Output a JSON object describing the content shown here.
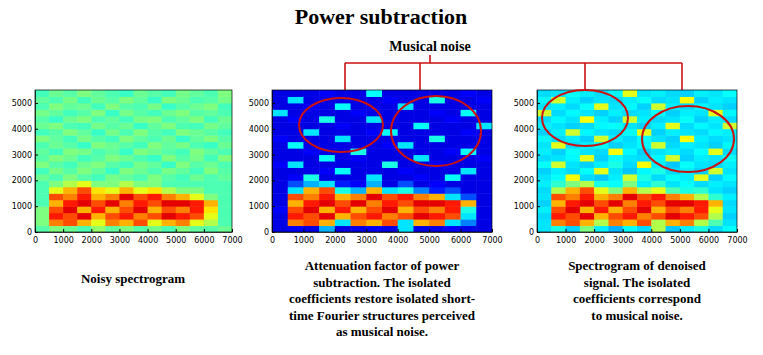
{
  "title": "Power subtraction",
  "annotation": "Musical noise",
  "chart_data": [
    {
      "type": "heatmap",
      "title": [
        "Noisy spectrogram"
      ],
      "xlim": [
        0,
        7000
      ],
      "ylim": [
        0,
        5500
      ],
      "xticks": [
        0,
        1000,
        2000,
        3000,
        4000,
        5000,
        6000,
        7000
      ],
      "yticks": [
        0,
        1000,
        2000,
        3000,
        4000,
        5000
      ],
      "zlim": [
        0,
        1
      ],
      "z": [
        [
          0.46,
          0.5,
          0.48,
          0.45,
          0.52,
          0.47,
          0.5,
          0.46,
          0.49,
          0.45,
          0.5,
          0.47,
          0.46,
          0.48
        ],
        [
          0.5,
          0.75,
          0.8,
          0.7,
          0.6,
          0.75,
          0.7,
          0.8,
          0.6,
          0.7,
          0.75,
          0.6,
          0.55,
          0.45
        ],
        [
          0.5,
          0.85,
          0.8,
          0.9,
          0.7,
          0.8,
          0.85,
          0.75,
          0.8,
          0.9,
          0.85,
          0.8,
          0.6,
          0.45
        ],
        [
          0.5,
          0.8,
          0.9,
          0.7,
          0.85,
          0.7,
          0.8,
          0.9,
          0.7,
          0.8,
          0.75,
          0.85,
          0.65,
          0.45
        ],
        [
          0.45,
          0.7,
          0.85,
          0.9,
          0.8,
          0.9,
          0.75,
          0.85,
          0.8,
          0.9,
          0.9,
          0.85,
          0.7,
          0.45
        ],
        [
          0.45,
          0.8,
          0.75,
          0.85,
          0.7,
          0.75,
          0.9,
          0.8,
          0.85,
          0.75,
          0.7,
          0.6,
          0.5,
          0.45
        ],
        [
          0.45,
          0.6,
          0.7,
          0.8,
          0.65,
          0.6,
          0.7,
          0.6,
          0.65,
          0.55,
          0.5,
          0.5,
          0.45,
          0.45
        ],
        [
          0.45,
          0.5,
          0.55,
          0.6,
          0.5,
          0.5,
          0.55,
          0.5,
          0.5,
          0.45,
          0.45,
          0.45,
          0.45,
          0.45
        ],
        [
          0.48,
          0.45,
          0.5,
          0.46,
          0.44,
          0.49,
          0.47,
          0.45,
          0.5,
          0.46,
          0.44,
          0.48,
          0.45,
          0.47
        ],
        [
          0.44,
          0.49,
          0.46,
          0.5,
          0.47,
          0.43,
          0.5,
          0.48,
          0.45,
          0.49,
          0.47,
          0.44,
          0.5,
          0.46
        ],
        [
          0.5,
          0.46,
          0.44,
          0.48,
          0.5,
          0.46,
          0.44,
          0.49,
          0.47,
          0.43,
          0.5,
          0.46,
          0.48,
          0.45
        ],
        [
          0.46,
          0.5,
          0.48,
          0.44,
          0.46,
          0.5,
          0.48,
          0.45,
          0.43,
          0.5,
          0.46,
          0.49,
          0.44,
          0.5
        ],
        [
          0.47,
          0.44,
          0.5,
          0.49,
          0.45,
          0.47,
          0.43,
          0.5,
          0.48,
          0.46,
          0.44,
          0.5,
          0.47,
          0.45
        ],
        [
          0.45,
          0.48,
          0.46,
          0.43,
          0.5,
          0.48,
          0.46,
          0.44,
          0.5,
          0.47,
          0.49,
          0.45,
          0.43,
          0.48
        ],
        [
          0.5,
          0.47,
          0.44,
          0.49,
          0.46,
          0.44,
          0.5,
          0.47,
          0.45,
          0.48,
          0.43,
          0.47,
          0.5,
          0.46
        ],
        [
          0.44,
          0.46,
          0.5,
          0.47,
          0.43,
          0.49,
          0.45,
          0.5,
          0.46,
          0.44,
          0.5,
          0.48,
          0.46,
          0.44
        ],
        [
          0.48,
          0.5,
          0.45,
          0.44,
          0.49,
          0.46,
          0.48,
          0.43,
          0.47,
          0.5,
          0.45,
          0.44,
          0.49,
          0.47
        ],
        [
          0.46,
          0.43,
          0.48,
          0.5,
          0.45,
          0.47,
          0.44,
          0.49,
          0.5,
          0.45,
          0.47,
          0.5,
          0.44,
          0.48
        ],
        [
          0.49,
          0.47,
          0.44,
          0.46,
          0.5,
          0.43,
          0.49,
          0.46,
          0.44,
          0.48,
          0.5,
          0.46,
          0.47,
          0.45
        ],
        [
          0.45,
          0.5,
          0.47,
          0.48,
          0.44,
          0.5,
          0.46,
          0.45,
          0.49,
          0.43,
          0.46,
          0.48,
          0.5,
          0.44
        ],
        [
          0.47,
          0.45,
          0.49,
          0.44,
          0.48,
          0.46,
          0.5,
          0.47,
          0.43,
          0.5,
          0.48,
          0.45,
          0.46,
          0.49
        ],
        [
          0.44,
          0.48,
          0.46,
          0.5,
          0.47,
          0.45,
          0.43,
          0.48,
          0.46,
          0.44,
          0.49,
          0.47,
          0.45,
          0.5
        ]
      ]
    },
    {
      "type": "heatmap",
      "title": [
        "Attenuation factor of power",
        "subtraction.  The isolated",
        "coefficients restore isolated short-",
        "time Fourier structures perceived",
        "as musical noise."
      ],
      "xlim": [
        0,
        7000
      ],
      "ylim": [
        0,
        5500
      ],
      "xticks": [
        0,
        1000,
        2000,
        3000,
        4000,
        5000,
        6000,
        7000
      ],
      "yticks": [
        0,
        1000,
        2000,
        3000,
        4000,
        5000
      ],
      "zlim": [
        0,
        1
      ],
      "z": [
        [
          0.1,
          0.12,
          0.1,
          0.3,
          0.1,
          0.1,
          0.12,
          0.1,
          0.35,
          0.1,
          0.1,
          0.12,
          0.1,
          0.1
        ],
        [
          0.1,
          0.75,
          0.8,
          0.7,
          0.35,
          0.75,
          0.7,
          0.8,
          0.35,
          0.7,
          0.75,
          0.35,
          0.25,
          0.1
        ],
        [
          0.1,
          0.85,
          0.8,
          0.9,
          0.7,
          0.8,
          0.85,
          0.75,
          0.8,
          0.9,
          0.85,
          0.8,
          0.35,
          0.1
        ],
        [
          0.12,
          0.8,
          0.9,
          0.7,
          0.85,
          0.7,
          0.8,
          0.9,
          0.7,
          0.8,
          0.75,
          0.85,
          0.4,
          0.1
        ],
        [
          0.1,
          0.7,
          0.85,
          0.9,
          0.8,
          0.9,
          0.75,
          0.85,
          0.8,
          0.9,
          0.9,
          0.85,
          0.7,
          0.1
        ],
        [
          0.1,
          0.8,
          0.75,
          0.85,
          0.7,
          0.75,
          0.9,
          0.8,
          0.85,
          0.75,
          0.7,
          0.35,
          0.2,
          0.1
        ],
        [
          0.1,
          0.35,
          0.7,
          0.8,
          0.4,
          0.3,
          0.7,
          0.35,
          0.4,
          0.25,
          0.15,
          0.2,
          0.1,
          0.1
        ],
        [
          0.1,
          0.2,
          0.3,
          0.35,
          0.15,
          0.12,
          0.3,
          0.1,
          0.2,
          0.1,
          0.12,
          0.1,
          0.1,
          0.1
        ],
        [
          0.1,
          0.12,
          0.4,
          0.1,
          0.1,
          0.1,
          0.35,
          0.1,
          0.1,
          0.12,
          0.1,
          0.38,
          0.1,
          0.1
        ],
        [
          0.1,
          0.1,
          0.1,
          0.12,
          0.38,
          0.1,
          0.1,
          0.1,
          0.12,
          0.1,
          0.1,
          0.1,
          0.35,
          0.1
        ],
        [
          0.12,
          0.35,
          0.1,
          0.1,
          0.1,
          0.1,
          0.1,
          0.4,
          0.1,
          0.1,
          0.12,
          0.1,
          0.1,
          0.1
        ],
        [
          0.1,
          0.1,
          0.1,
          0.38,
          0.1,
          0.12,
          0.1,
          0.1,
          0.1,
          0.35,
          0.1,
          0.1,
          0.1,
          0.12
        ],
        [
          0.1,
          0.1,
          0.12,
          0.1,
          0.1,
          0.4,
          0.1,
          0.1,
          0.1,
          0.1,
          0.1,
          0.12,
          0.38,
          0.1
        ],
        [
          0.1,
          0.38,
          0.1,
          0.1,
          0.1,
          0.1,
          0.1,
          0.12,
          0.35,
          0.1,
          0.1,
          0.1,
          0.1,
          0.1
        ],
        [
          0.12,
          0.1,
          0.1,
          0.1,
          0.35,
          0.1,
          0.1,
          0.1,
          0.1,
          0.1,
          0.4,
          0.1,
          0.1,
          0.1
        ],
        [
          0.1,
          0.1,
          0.35,
          0.1,
          0.1,
          0.1,
          0.12,
          0.38,
          0.1,
          0.1,
          0.1,
          0.1,
          0.12,
          0.1
        ],
        [
          0.1,
          0.1,
          0.1,
          0.1,
          0.12,
          0.1,
          0.1,
          0.1,
          0.1,
          0.38,
          0.1,
          0.1,
          0.1,
          0.35
        ],
        [
          0.1,
          0.12,
          0.1,
          0.4,
          0.1,
          0.1,
          0.35,
          0.1,
          0.1,
          0.1,
          0.1,
          0.12,
          0.1,
          0.1
        ],
        [
          0.35,
          0.1,
          0.1,
          0.1,
          0.1,
          0.12,
          0.1,
          0.1,
          0.1,
          0.1,
          0.12,
          0.1,
          0.38,
          0.1
        ],
        [
          0.1,
          0.1,
          0.12,
          0.1,
          0.38,
          0.1,
          0.1,
          0.1,
          0.35,
          0.1,
          0.1,
          0.1,
          0.1,
          0.1
        ],
        [
          0.1,
          0.35,
          0.1,
          0.1,
          0.1,
          0.1,
          0.1,
          0.12,
          0.1,
          0.1,
          0.4,
          0.1,
          0.1,
          0.12
        ],
        [
          0.1,
          0.1,
          0.1,
          0.12,
          0.1,
          0.1,
          0.38,
          0.1,
          0.1,
          0.1,
          0.1,
          0.1,
          0.12,
          0.1
        ]
      ]
    },
    {
      "type": "heatmap",
      "title": [
        "Spectrogram of denoised",
        "signal. The isolated",
        "coefficients correspond",
        "to musical noise."
      ],
      "xlim": [
        0,
        7000
      ],
      "ylim": [
        0,
        5500
      ],
      "xticks": [
        0,
        1000,
        2000,
        3000,
        4000,
        5000,
        6000,
        7000
      ],
      "yticks": [
        0,
        1000,
        2000,
        3000,
        4000,
        5000
      ],
      "zlim": [
        0,
        1
      ],
      "z": [
        [
          0.35,
          0.4,
          0.33,
          0.5,
          0.36,
          0.3,
          0.38,
          0.34,
          0.55,
          0.32,
          0.36,
          0.4,
          0.34,
          0.38
        ],
        [
          0.35,
          0.75,
          0.8,
          0.7,
          0.55,
          0.75,
          0.7,
          0.8,
          0.55,
          0.7,
          0.75,
          0.55,
          0.45,
          0.35
        ],
        [
          0.34,
          0.85,
          0.8,
          0.9,
          0.7,
          0.8,
          0.85,
          0.75,
          0.8,
          0.9,
          0.85,
          0.8,
          0.55,
          0.33
        ],
        [
          0.36,
          0.8,
          0.9,
          0.7,
          0.85,
          0.7,
          0.8,
          0.9,
          0.7,
          0.8,
          0.75,
          0.85,
          0.6,
          0.35
        ],
        [
          0.33,
          0.7,
          0.85,
          0.9,
          0.8,
          0.9,
          0.75,
          0.85,
          0.8,
          0.9,
          0.9,
          0.85,
          0.7,
          0.34
        ],
        [
          0.35,
          0.8,
          0.75,
          0.85,
          0.7,
          0.75,
          0.9,
          0.8,
          0.85,
          0.75,
          0.7,
          0.55,
          0.42,
          0.36
        ],
        [
          0.34,
          0.55,
          0.7,
          0.8,
          0.6,
          0.5,
          0.7,
          0.55,
          0.6,
          0.45,
          0.4,
          0.42,
          0.35,
          0.33
        ],
        [
          0.36,
          0.42,
          0.5,
          0.55,
          0.4,
          0.38,
          0.5,
          0.36,
          0.42,
          0.35,
          0.38,
          0.34,
          0.36,
          0.35
        ],
        [
          0.35,
          0.38,
          0.62,
          0.34,
          0.32,
          0.36,
          0.58,
          0.4,
          0.34,
          0.38,
          0.36,
          0.6,
          0.33,
          0.37
        ],
        [
          0.33,
          0.36,
          0.34,
          0.38,
          0.6,
          0.35,
          0.32,
          0.37,
          0.4,
          0.34,
          0.36,
          0.33,
          0.58,
          0.35
        ],
        [
          0.38,
          0.58,
          0.35,
          0.33,
          0.36,
          0.4,
          0.34,
          0.62,
          0.36,
          0.32,
          0.38,
          0.35,
          0.34,
          0.36
        ],
        [
          0.34,
          0.35,
          0.37,
          0.6,
          0.33,
          0.38,
          0.35,
          0.34,
          0.37,
          0.58,
          0.33,
          0.36,
          0.35,
          0.38
        ],
        [
          0.36,
          0.33,
          0.38,
          0.35,
          0.34,
          0.62,
          0.37,
          0.33,
          0.35,
          0.36,
          0.34,
          0.38,
          0.6,
          0.34
        ],
        [
          0.35,
          0.6,
          0.34,
          0.36,
          0.38,
          0.33,
          0.35,
          0.37,
          0.58,
          0.34,
          0.36,
          0.35,
          0.33,
          0.37
        ],
        [
          0.37,
          0.34,
          0.36,
          0.33,
          0.58,
          0.36,
          0.34,
          0.38,
          0.35,
          0.33,
          0.62,
          0.36,
          0.34,
          0.35
        ],
        [
          0.33,
          0.36,
          0.58,
          0.37,
          0.35,
          0.34,
          0.38,
          0.6,
          0.33,
          0.36,
          0.35,
          0.34,
          0.37,
          0.36
        ],
        [
          0.36,
          0.35,
          0.33,
          0.34,
          0.37,
          0.38,
          0.35,
          0.33,
          0.36,
          0.6,
          0.34,
          0.37,
          0.35,
          0.58
        ],
        [
          0.34,
          0.37,
          0.35,
          0.62,
          0.36,
          0.33,
          0.58,
          0.36,
          0.34,
          0.35,
          0.38,
          0.33,
          0.36,
          0.34
        ],
        [
          0.58,
          0.34,
          0.37,
          0.35,
          0.33,
          0.36,
          0.34,
          0.35,
          0.38,
          0.33,
          0.36,
          0.35,
          0.6,
          0.37
        ],
        [
          0.35,
          0.36,
          0.34,
          0.38,
          0.6,
          0.35,
          0.37,
          0.33,
          0.58,
          0.36,
          0.34,
          0.37,
          0.35,
          0.33
        ],
        [
          0.37,
          0.58,
          0.36,
          0.33,
          0.35,
          0.34,
          0.36,
          0.38,
          0.34,
          0.35,
          0.62,
          0.33,
          0.36,
          0.35
        ],
        [
          0.34,
          0.35,
          0.38,
          0.36,
          0.34,
          0.37,
          0.6,
          0.35,
          0.36,
          0.34,
          0.33,
          0.36,
          0.35,
          0.38
        ]
      ]
    }
  ]
}
